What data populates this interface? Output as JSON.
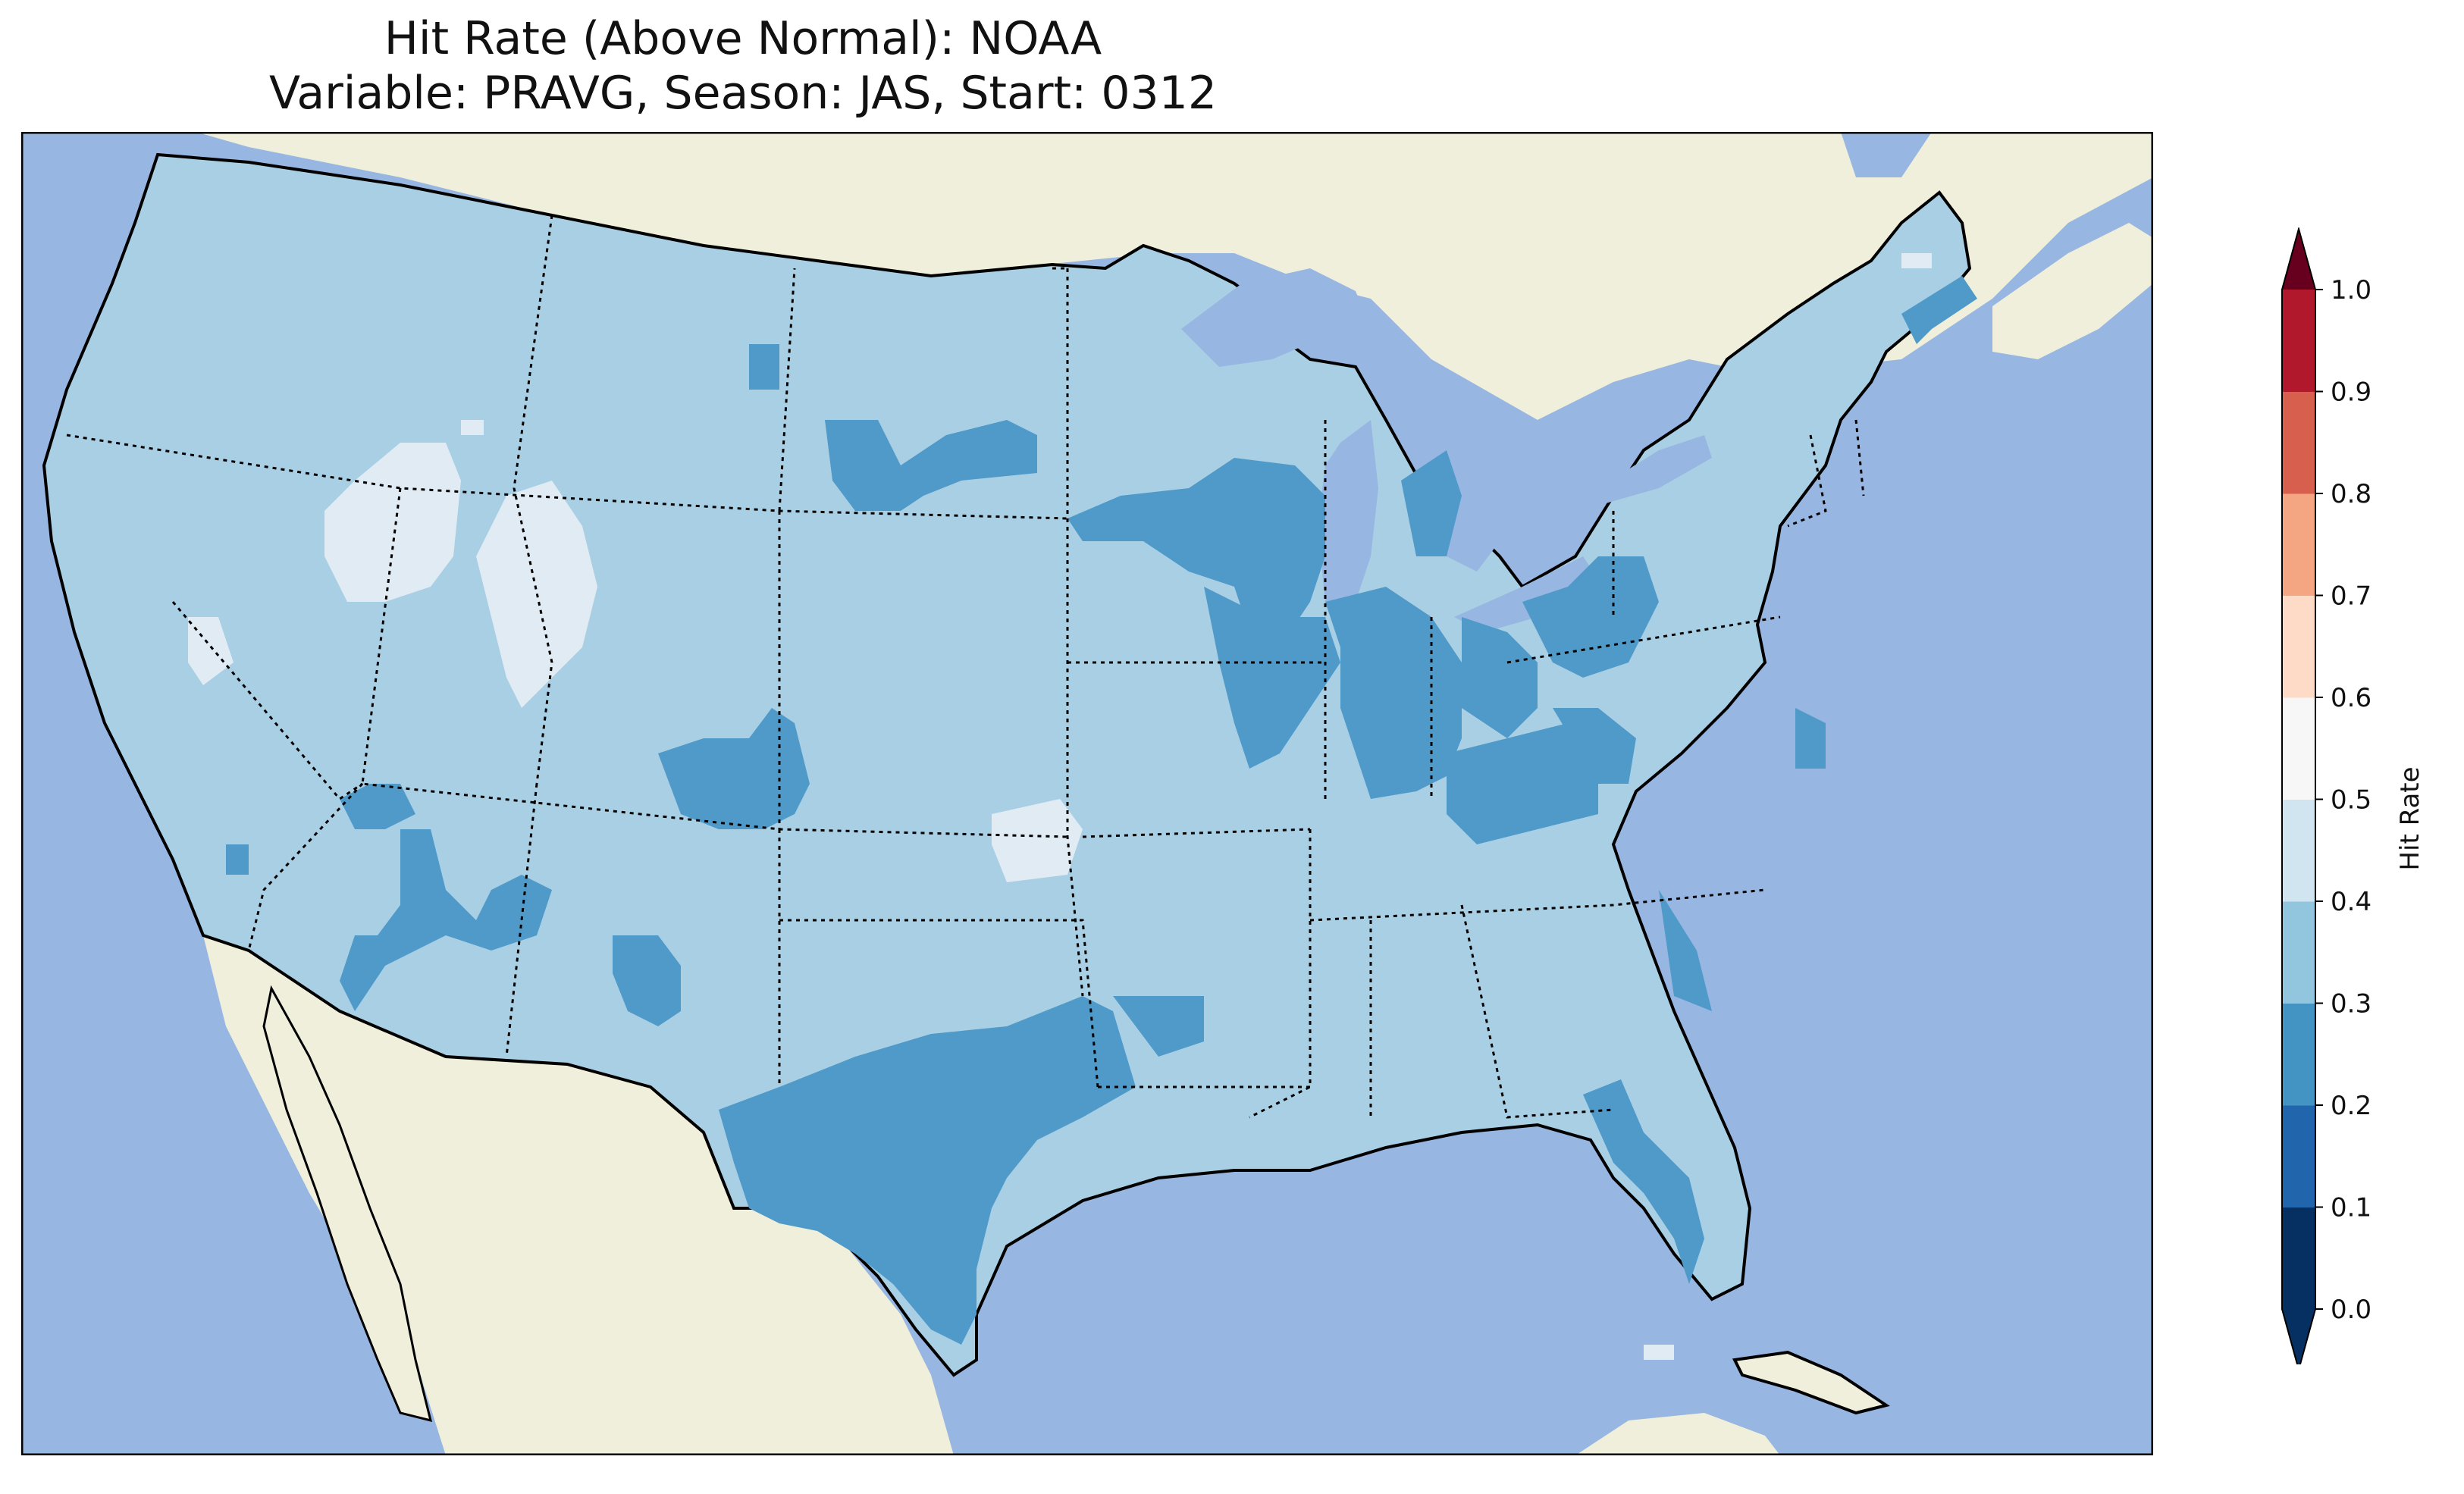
{
  "title_line1": "Hit Rate (Above Normal): NOAA",
  "title_line2": "Variable: PRAVG, Season: JAS, Start: 0312",
  "colorbar": {
    "label": "Hit Rate",
    "ticks": [
      "0.0",
      "0.1",
      "0.2",
      "0.3",
      "0.4",
      "0.5",
      "0.6",
      "0.7",
      "0.8",
      "0.9",
      "1.0"
    ],
    "colors": [
      "#053061",
      "#2166ac",
      "#4393c3",
      "#92c5de",
      "#d1e5f0",
      "#f7f7f7",
      "#fddbc7",
      "#f4a582",
      "#d6604d",
      "#b2182b",
      "#67001f"
    ],
    "extend": "both"
  },
  "map_colors": {
    "ocean": "#97b6e1",
    "land": "#efefdb",
    "hit_0.2_0.3": "#4f9ac9",
    "hit_0.3_0.4": "#a9cfe4",
    "hit_0.4_0.5": "#e0ebf4"
  }
}
